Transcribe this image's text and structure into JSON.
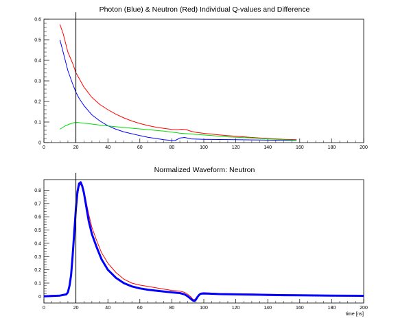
{
  "chart_data": [
    {
      "type": "line",
      "title": "Photon (Blue) & Neutron (Red) Individual Q-values and Difference",
      "xlabel": "",
      "ylabel": "",
      "xlim": [
        0,
        200
      ],
      "ylim": [
        0,
        0.6
      ],
      "x_ticks": [
        "0",
        "20",
        "40",
        "60",
        "80",
        "100",
        "120",
        "140",
        "160",
        "180",
        "200"
      ],
      "y_ticks": [
        "0",
        "0.1",
        "0.2",
        "0.3",
        "0.4",
        "0.5",
        "0.6"
      ],
      "grid": false,
      "marker_x": 20,
      "series": [
        {
          "color": "#ff0000",
          "x": [
            10,
            12,
            15,
            18,
            20,
            25,
            30,
            35,
            40,
            45,
            50,
            55,
            60,
            65,
            70,
            75,
            80,
            83,
            86,
            89,
            92,
            95,
            100,
            110,
            120,
            130,
            140,
            150,
            158
          ],
          "values": [
            0.575,
            0.53,
            0.44,
            0.385,
            0.34,
            0.27,
            0.22,
            0.185,
            0.16,
            0.138,
            0.12,
            0.105,
            0.093,
            0.083,
            0.075,
            0.069,
            0.064,
            0.062,
            0.065,
            0.063,
            0.055,
            0.05,
            0.045,
            0.037,
            0.031,
            0.025,
            0.02,
            0.016,
            0.014
          ]
        },
        {
          "color": "#0000ff",
          "x": [
            10,
            12,
            15,
            18,
            20,
            22,
            25,
            30,
            35,
            40,
            45,
            50,
            55,
            60,
            65,
            70,
            75,
            80,
            82,
            85,
            88,
            92,
            100,
            110,
            120,
            130,
            140,
            150,
            158
          ],
          "values": [
            0.5,
            0.44,
            0.35,
            0.285,
            0.245,
            0.215,
            0.18,
            0.135,
            0.105,
            0.082,
            0.065,
            0.052,
            0.043,
            0.034,
            0.026,
            0.02,
            0.014,
            0.01,
            0.01,
            0.022,
            0.025,
            0.018,
            0.016,
            0.015,
            0.014,
            0.013,
            0.012,
            0.011,
            0.01
          ]
        },
        {
          "color": "#00dd00",
          "x": [
            10,
            13,
            16,
            19,
            21,
            24,
            28,
            35,
            45,
            55,
            65,
            75,
            85,
            95,
            105,
            115,
            125,
            135,
            145,
            155,
            158
          ],
          "values": [
            0.065,
            0.08,
            0.09,
            0.097,
            0.098,
            0.095,
            0.092,
            0.085,
            0.077,
            0.07,
            0.063,
            0.056,
            0.046,
            0.04,
            0.034,
            0.028,
            0.024,
            0.02,
            0.016,
            0.012,
            0.011
          ]
        }
      ]
    },
    {
      "type": "line",
      "title": "Normalized Waveform: Neutron",
      "xlabel": "time [ns]",
      "ylabel": "",
      "xlim": [
        0,
        200
      ],
      "ylim": [
        -0.05,
        0.88
      ],
      "x_ticks": [
        "0",
        "20",
        "40",
        "60",
        "80",
        "100",
        "120",
        "140",
        "160",
        "180",
        "200"
      ],
      "y_ticks": [
        "0",
        "0.1",
        "0.2",
        "0.3",
        "0.4",
        "0.5",
        "0.6",
        "0.7",
        "0.8"
      ],
      "grid": false,
      "marker_x": 20,
      "series": [
        {
          "color": "#ff0000",
          "x": [
            0,
            5,
            10,
            14,
            15,
            16,
            17,
            18,
            19,
            20,
            21,
            22,
            23,
            24,
            25,
            26,
            27,
            28,
            30,
            33,
            36,
            40,
            45,
            50,
            55,
            60,
            65,
            70,
            75,
            80,
            85,
            88,
            90,
            92,
            93,
            94,
            95,
            96,
            97,
            98,
            100,
            105,
            110,
            120,
            130,
            140,
            150,
            160,
            170,
            180,
            190,
            200
          ],
          "values": [
            0.005,
            0.008,
            0.01,
            0.02,
            0.04,
            0.09,
            0.16,
            0.3,
            0.46,
            0.62,
            0.75,
            0.83,
            0.845,
            0.83,
            0.79,
            0.74,
            0.68,
            0.62,
            0.52,
            0.42,
            0.33,
            0.25,
            0.18,
            0.13,
            0.1,
            0.085,
            0.075,
            0.065,
            0.055,
            0.045,
            0.04,
            0.03,
            0.015,
            -0.005,
            -0.02,
            -0.025,
            -0.015,
            0.0,
            0.015,
            0.025,
            0.028,
            0.025,
            0.022,
            0.02,
            0.018,
            0.016,
            0.014,
            0.012,
            0.01,
            0.009,
            0.008,
            0.007
          ]
        },
        {
          "color": "#0000ff",
          "x": [
            0,
            5,
            10,
            14,
            15,
            16,
            17,
            18,
            19,
            20,
            21,
            22,
            23,
            24,
            25,
            26,
            27,
            28,
            30,
            33,
            36,
            40,
            45,
            50,
            55,
            60,
            65,
            70,
            75,
            80,
            85,
            88,
            90,
            92,
            93,
            94,
            95,
            96,
            97,
            98,
            100,
            105,
            110,
            120,
            130,
            140,
            150,
            160,
            170,
            180,
            190,
            200
          ],
          "values": [
            0.0,
            0.003,
            0.006,
            0.015,
            0.03,
            0.08,
            0.16,
            0.31,
            0.49,
            0.66,
            0.79,
            0.85,
            0.86,
            0.83,
            0.78,
            0.71,
            0.64,
            0.57,
            0.47,
            0.37,
            0.28,
            0.2,
            0.14,
            0.1,
            0.075,
            0.06,
            0.05,
            0.043,
            0.037,
            0.03,
            0.025,
            0.015,
            0.0,
            -0.02,
            -0.03,
            -0.035,
            -0.025,
            -0.005,
            0.01,
            0.02,
            0.022,
            0.02,
            0.017,
            0.015,
            0.013,
            0.011,
            0.009,
            0.008,
            0.007,
            0.006,
            0.005,
            0.004
          ]
        }
      ]
    }
  ]
}
